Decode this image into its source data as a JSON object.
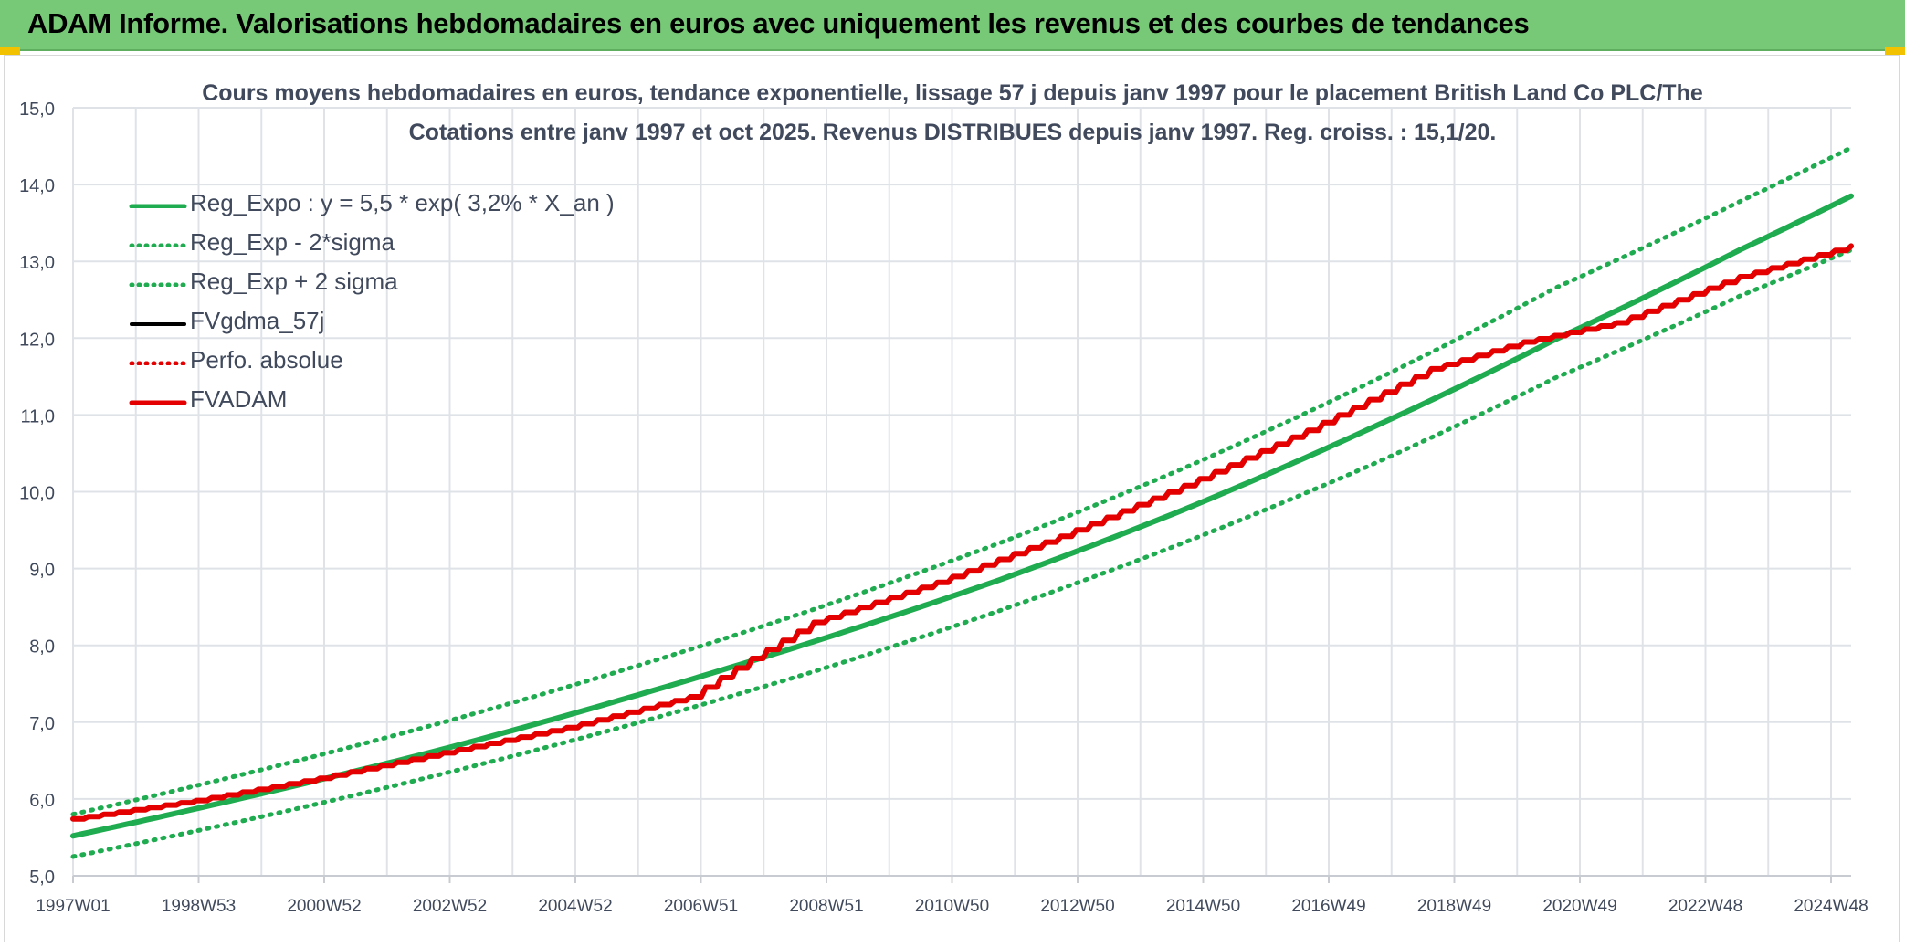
{
  "banner": {
    "title": "ADAM Informe. Valorisations hebdomadaires en euros avec uniquement les revenus et des courbes de tendances"
  },
  "colors": {
    "banner_bg": "#77c977",
    "reg_green": "#1fab4f",
    "adam_red": "#e40000",
    "grid": "#dfe3e8",
    "text": "#404a5c"
  },
  "chart_data": {
    "type": "line",
    "title_line1": "Cours moyens hebdomadaires en euros, tendance exponentielle, lissage 57 j depuis janv 1997 pour le placement British Land Co PLC/The",
    "title_line2": "Cotations entre janv 1997 et oct 2025. Revenus DISTRIBUES depuis janv 1997. Reg. croiss. : 15,1/20.",
    "xlabel": "",
    "ylabel": "",
    "ylim": [
      5.0,
      15.0
    ],
    "yticks": [
      "5,0",
      "6,0",
      "7,0",
      "8,0",
      "9,0",
      "10,0",
      "11,0",
      "12,0",
      "13,0",
      "14,0",
      "15,0"
    ],
    "xlim": [
      1997.0,
      2025.8
    ],
    "xticks": [
      "1997W01",
      "1998W53",
      "2000W52",
      "2002W52",
      "2004W52",
      "2006W51",
      "2008W51",
      "2010W50",
      "2012W50",
      "2014W50",
      "2016W49",
      "2018W49",
      "2020W49",
      "2022W48",
      "2024W48"
    ],
    "grid": true,
    "legend_position": "top-left",
    "legend": [
      "Reg_Expo : y = 5,5 * exp( 3,2% *  X_an )",
      "Reg_Exp - 2*sigma",
      "Reg_Exp + 2 sigma",
      "FVgdma_57j",
      "Perfo. absolue",
      "FVADAM"
    ],
    "series": [
      {
        "name": "Reg_Expo : y = 5,5 * exp( 3,2% *  X_an )",
        "style": "solid-thick",
        "color": "#1fab4f",
        "x": [
          1997.0,
          2000.0,
          2003.0,
          2006.0,
          2009.0,
          2012.0,
          2015.0,
          2018.0,
          2021.0,
          2024.0,
          2025.8
        ],
        "values": [
          5.52,
          6.06,
          6.65,
          7.32,
          8.05,
          8.85,
          9.77,
          10.82,
          11.98,
          13.15,
          13.85
        ]
      },
      {
        "name": "Reg_Exp - 2*sigma",
        "style": "dotted",
        "color": "#1fab4f",
        "x": [
          1997.0,
          2000.0,
          2003.0,
          2006.0,
          2009.0,
          2012.0,
          2015.0,
          2018.0,
          2021.0,
          2024.0,
          2025.8
        ],
        "values": [
          5.25,
          5.76,
          6.33,
          6.96,
          7.66,
          8.45,
          9.34,
          10.34,
          11.48,
          12.55,
          13.15
        ]
      },
      {
        "name": "Reg_Exp + 2 sigma",
        "style": "dotted",
        "color": "#1fab4f",
        "x": [
          1997.0,
          2000.0,
          2003.0,
          2006.0,
          2009.0,
          2012.0,
          2015.0,
          2018.0,
          2021.0,
          2024.0,
          2025.8
        ],
        "values": [
          5.8,
          6.37,
          7.0,
          7.7,
          8.47,
          9.33,
          10.31,
          11.42,
          12.65,
          13.78,
          14.48
        ]
      },
      {
        "name": "FVgdma_57j",
        "style": "solid",
        "color": "#000000",
        "x": [
          1997.0,
          1999.0,
          2001.0,
          2003.0,
          2005.0,
          2007.0,
          2008.0,
          2009.0,
          2011.0,
          2013.0,
          2015.0,
          2017.0,
          2019.0,
          2020.5,
          2022.0,
          2024.0,
          2025.8
        ],
        "values": [
          5.74,
          5.98,
          6.27,
          6.6,
          6.93,
          7.33,
          7.83,
          8.3,
          8.82,
          9.42,
          10.08,
          10.8,
          11.6,
          11.95,
          12.2,
          12.8,
          13.2
        ]
      },
      {
        "name": "Perfo. absolue",
        "style": "dotted",
        "color": "#e40000",
        "x": [
          1997.0,
          1999.0,
          2001.0,
          2003.0,
          2005.0,
          2007.0,
          2008.0,
          2009.0,
          2011.0,
          2013.0,
          2015.0,
          2017.0,
          2019.0,
          2020.5,
          2022.0,
          2024.0,
          2025.8
        ],
        "values": [
          5.74,
          5.98,
          6.27,
          6.6,
          6.93,
          7.33,
          7.83,
          8.3,
          8.82,
          9.42,
          10.08,
          10.8,
          11.6,
          11.95,
          12.2,
          12.8,
          13.2
        ]
      },
      {
        "name": "FVADAM",
        "style": "solid-thick",
        "color": "#e40000",
        "x": [
          1997.0,
          1999.0,
          2001.0,
          2003.0,
          2005.0,
          2007.0,
          2008.0,
          2009.0,
          2011.0,
          2013.0,
          2015.0,
          2017.0,
          2019.0,
          2020.5,
          2022.0,
          2024.0,
          2025.8
        ],
        "values": [
          5.74,
          5.98,
          6.27,
          6.6,
          6.93,
          7.33,
          7.83,
          8.3,
          8.82,
          9.42,
          10.08,
          10.8,
          11.6,
          11.95,
          12.2,
          12.8,
          13.2
        ]
      }
    ]
  }
}
